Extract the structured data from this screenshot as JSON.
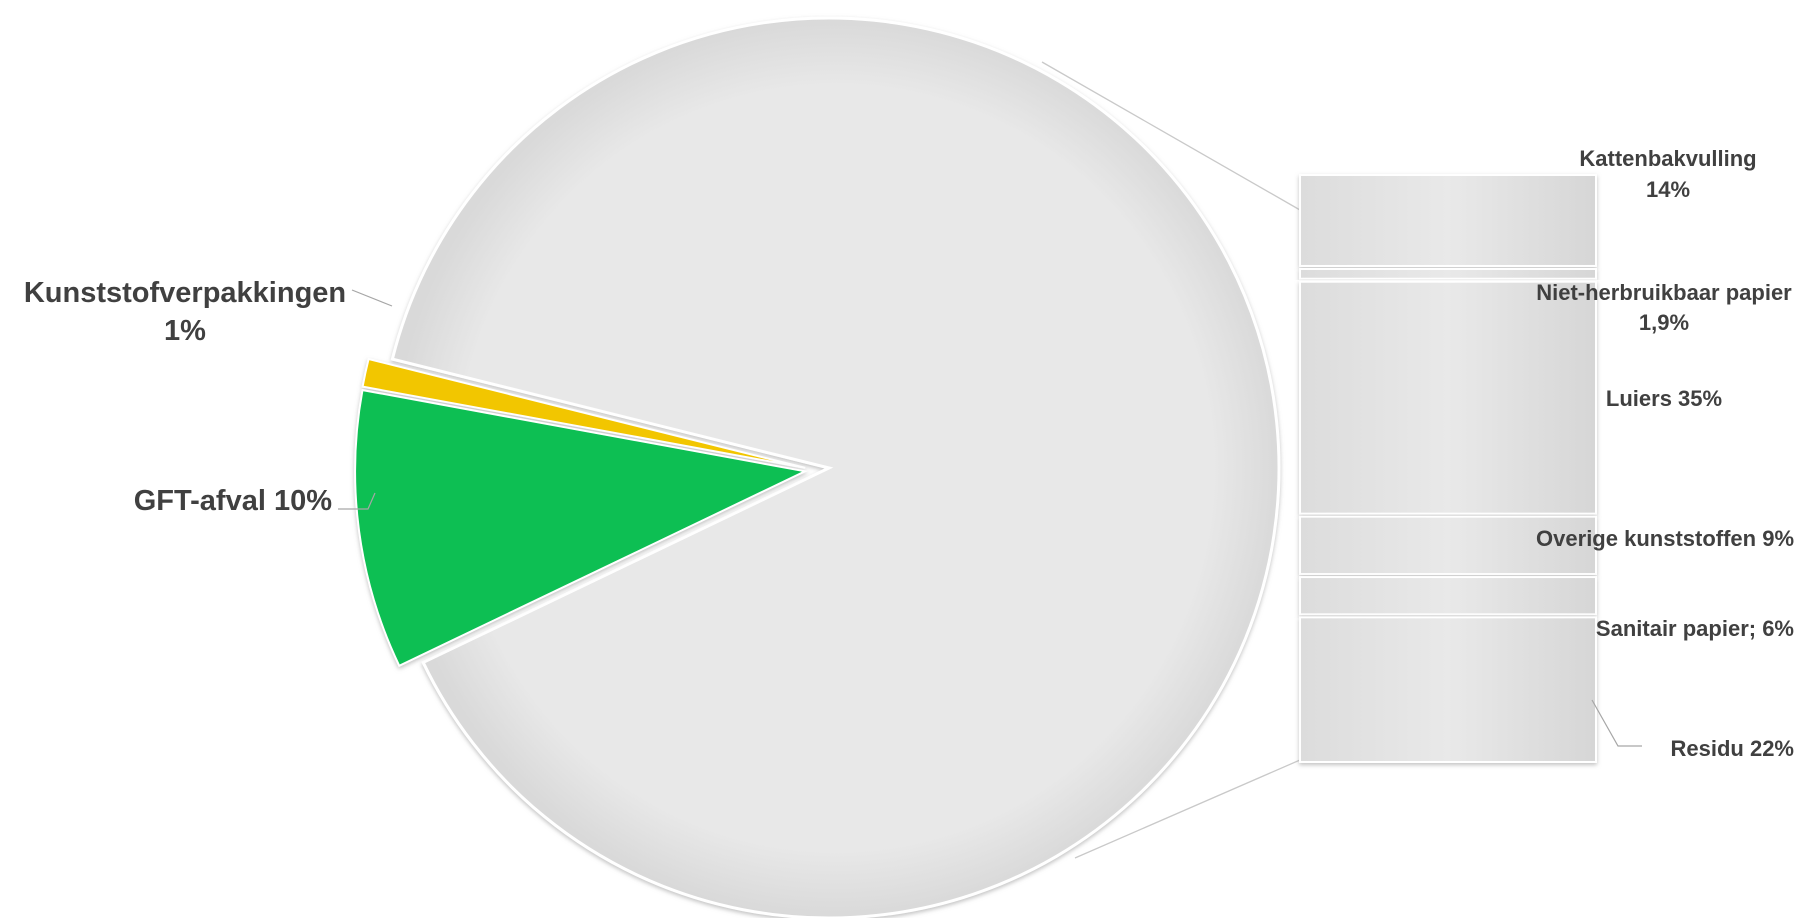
{
  "chart_data": {
    "type": "pie",
    "subtype": "bar-of-pie",
    "title": "",
    "main_slices": [
      {
        "label": "Kunststofverpakkingen",
        "value": 1,
        "value_text": "1%",
        "color": "#f2c600"
      },
      {
        "label": "GFT-afval",
        "value": 10,
        "value_text": "10%",
        "color": "#0abf53"
      },
      {
        "label": "Overig",
        "value": 89,
        "color": "#e6e6e6"
      }
    ],
    "secondary_bar": [
      {
        "label": "Kattenbakvulling",
        "value": 14,
        "value_text": "14%"
      },
      {
        "label": "Niet-herbruikbaar papier",
        "value": 1.9,
        "value_text": "1,9%"
      },
      {
        "label": "Luiers",
        "value": 35,
        "value_text": "35%"
      },
      {
        "label": "Overige kunststoffen",
        "value": 9,
        "value_text": "9%"
      },
      {
        "label": "Sanitair papier",
        "value": 6,
        "value_text": "6%"
      },
      {
        "label": "Residu",
        "value": 22,
        "value_text": "22%"
      }
    ],
    "colors": {
      "gray": "#e6e6e6",
      "gft": "#0abf53",
      "kunststof": "#f2c600"
    }
  },
  "labels": {
    "kunststof_line1": "Kunststofverpakkingen",
    "kunststof_line2": "1%",
    "gft": "GFT-afval 10%",
    "kattenbak_line1": "Kattenbakvulling",
    "kattenbak_line2": "14%",
    "papier_line1": "Niet-herbruikbaar papier",
    "papier_line2": "1,9%",
    "luiers": "Luiers 35%",
    "overige": "Overige kunststoffen 9%",
    "sanitair": "Sanitair papier; 6%",
    "residu": "Residu 22%"
  }
}
